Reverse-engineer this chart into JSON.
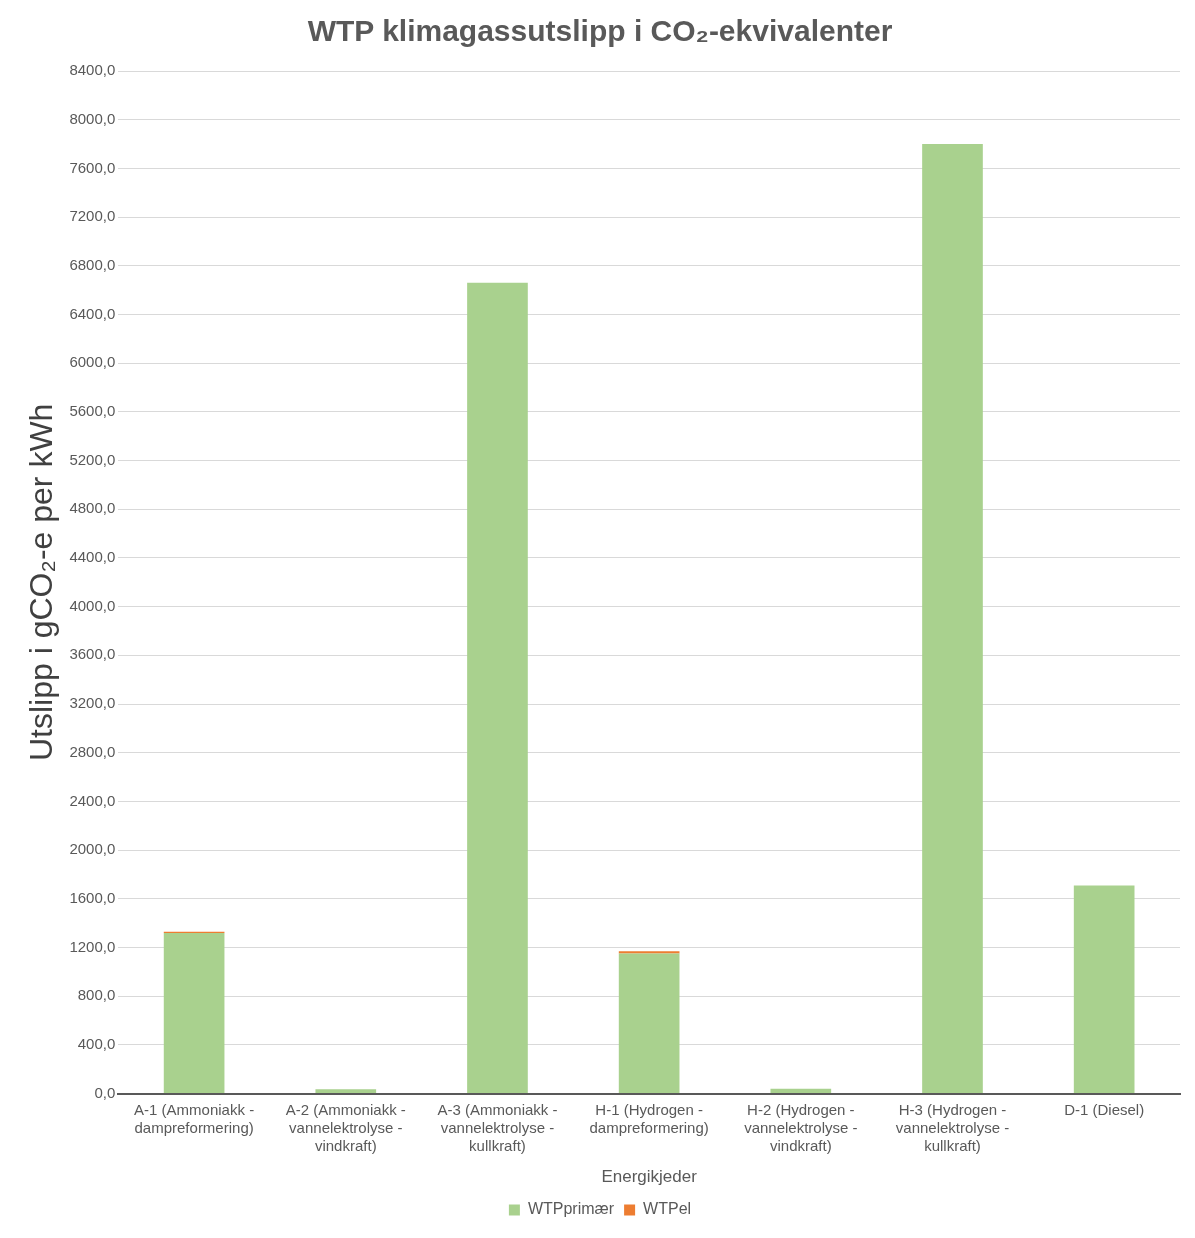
{
  "chart_data": {
    "type": "bar",
    "title": "WTP klimagassutslipp i CO₂-ekvivalenter",
    "xlabel": "Energikjeder",
    "ylabel": "Utslipp i gCO₂-e per kWh",
    "categories": [
      "A-1 (Ammoniakk - dampreformering)",
      "A-2 (Ammoniakk - vannelektrolyse - vindkraft)",
      "A-3 (Ammoniakk - vannelektrolyse - kullkraft)",
      "H-1 (Hydrogen - dampreformering)",
      "H-2 (Hydrogen - vannelektrolyse - vindkraft)",
      "H-3 (Hydrogen - vannelektrolyse - kullkraft)",
      "D-1 (Diesel)"
    ],
    "series": [
      {
        "name": "WTPprimær",
        "color": "#a9d18e",
        "values": [
          1320,
          35,
          6660,
          1150,
          40,
          7800,
          1710
        ]
      },
      {
        "name": "WTPel",
        "color": "#ed7d31",
        "values": [
          10,
          0,
          0,
          20,
          0,
          0,
          0
        ]
      }
    ],
    "stacked": true,
    "ylim": [
      0,
      8400
    ],
    "yticks": [
      {
        "value": 0,
        "label": "0,0"
      },
      {
        "value": 400,
        "label": "400,0"
      },
      {
        "value": 800,
        "label": "800,0"
      },
      {
        "value": 1200,
        "label": "1200,0"
      },
      {
        "value": 1600,
        "label": "1600,0"
      },
      {
        "value": 2000,
        "label": "2000,0"
      },
      {
        "value": 2400,
        "label": "2400,0"
      },
      {
        "value": 2800,
        "label": "2800,0"
      },
      {
        "value": 3200,
        "label": "3200,0"
      },
      {
        "value": 3600,
        "label": "3600,0"
      },
      {
        "value": 4000,
        "label": "4000,0"
      },
      {
        "value": 4400,
        "label": "4400,0"
      },
      {
        "value": 4800,
        "label": "4800,0"
      },
      {
        "value": 5200,
        "label": "5200,0"
      },
      {
        "value": 5600,
        "label": "5600,0"
      },
      {
        "value": 6000,
        "label": "6000,0"
      },
      {
        "value": 6400,
        "label": "6400,0"
      },
      {
        "value": 6800,
        "label": "6800,0"
      },
      {
        "value": 7200,
        "label": "7200,0"
      },
      {
        "value": 7600,
        "label": "7600,0"
      },
      {
        "value": 8000,
        "label": "8000,0"
      },
      {
        "value": 8400,
        "label": "8400,0"
      }
    ],
    "grid": "y",
    "legend": "bottom"
  }
}
